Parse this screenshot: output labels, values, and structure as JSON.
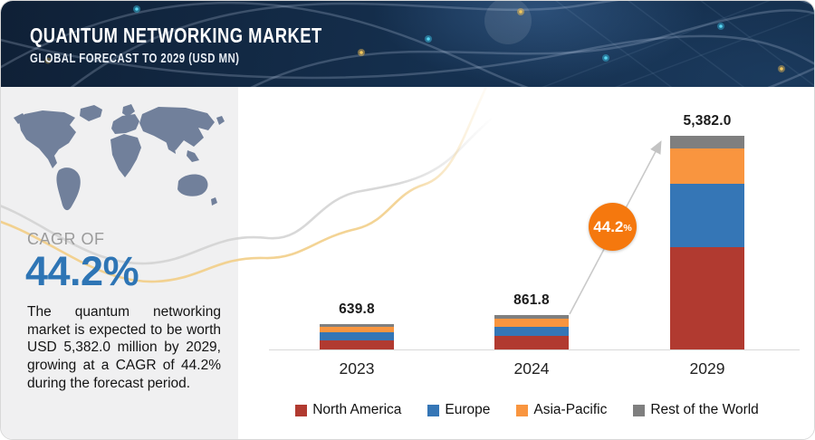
{
  "header": {
    "title": "QUANTUM NETWORKING MARKET",
    "subtitle": "GLOBAL FORECAST TO 2029 (USD MN)"
  },
  "sidebar": {
    "cagr_label": "CAGR OF",
    "cagr_value": "44.2%",
    "description": "The quantum networking market is expected to be worth USD 5,382.0 million by 2029, growing at a CAGR of 44.2% during the forecast period."
  },
  "chart_data": {
    "type": "bar",
    "stacked": true,
    "title": "Quantum Networking Market",
    "unit": "USD MN",
    "categories": [
      "2023",
      "2024",
      "2029"
    ],
    "totals": [
      639.8,
      861.8,
      5382.0
    ],
    "total_labels": [
      "639.8",
      "861.8",
      "5,382.0"
    ],
    "series": [
      {
        "name": "North America",
        "color": "#b13a30",
        "values": [
          228,
          340,
          2580
        ]
      },
      {
        "name": "Europe",
        "color": "#3576b6",
        "values": [
          212,
          220,
          1590
        ]
      },
      {
        "name": "Asia-Pacific",
        "color": "#f9953f",
        "values": [
          130,
          215,
          890
        ]
      },
      {
        "name": "Rest of the World",
        "color": "#7f7f7f",
        "values": [
          69.8,
          86.8,
          322
        ]
      }
    ],
    "badge": {
      "value": "44.2",
      "unit": "%"
    },
    "legend_position": "bottom",
    "axis": {
      "baseline_visible": true,
      "gridlines": false,
      "ylim": [
        0,
        5382
      ]
    }
  },
  "colors": {
    "accent_blue": "#2e75b5",
    "badge_orange": "#f5780e",
    "header_navy": "#15304f",
    "panel_gray": "#f0f0f1",
    "map_slate": "#71809b",
    "curve_gray": "#d4d4d4",
    "curve_yellow": "#f2cf8a",
    "axis_gray": "#d9d9d9"
  }
}
